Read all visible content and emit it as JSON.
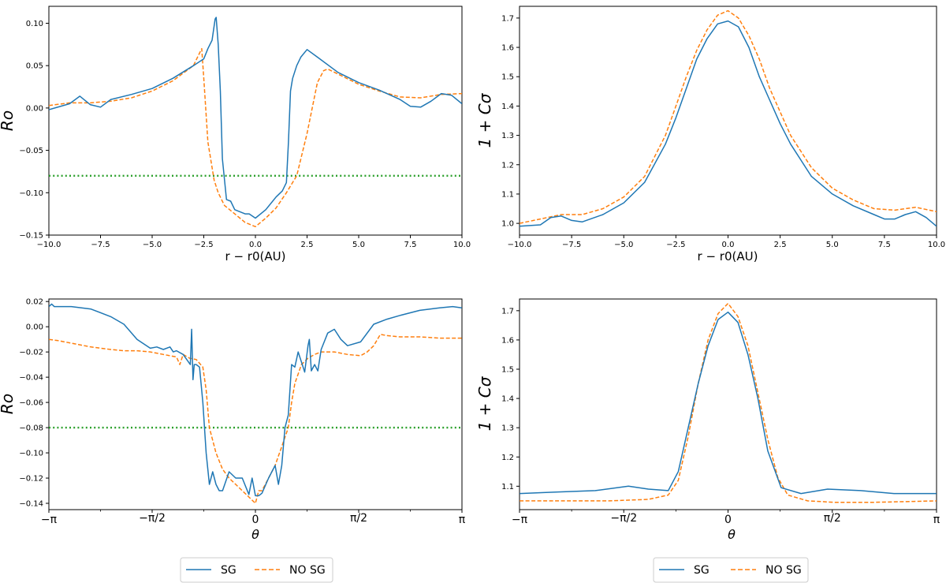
{
  "colors": {
    "sg": "#1f77b4",
    "nosg": "#ff7f0e",
    "threshold": "#2ca02c",
    "axis": "#000000"
  },
  "legends": [
    {
      "items": [
        {
          "label": "SG",
          "style": "solid"
        },
        {
          "label": "NO SG",
          "style": "dashed"
        }
      ]
    },
    {
      "items": [
        {
          "label": "SG",
          "style": "solid"
        },
        {
          "label": "NO SG",
          "style": "dashed"
        }
      ]
    }
  ],
  "chart_data": [
    {
      "type": "line",
      "title": "",
      "xlabel": "r − r0(AU)",
      "ylabel": "Ro",
      "xlim": [
        -10,
        10
      ],
      "ylim": [
        -0.15,
        0.12
      ],
      "xticks": [
        -10,
        -7.5,
        -5,
        -2.5,
        0,
        2.5,
        5,
        7.5,
        10
      ],
      "xticklabels": [
        "−10.0",
        "−7.5",
        "−5.0",
        "−2.5",
        "0.0",
        "2.5",
        "5.0",
        "7.5",
        "10.0"
      ],
      "yticks": [
        -0.15,
        -0.1,
        -0.05,
        0,
        0.05,
        0.1
      ],
      "yticklabels": [
        "−0.15",
        "−0.10",
        "−0.05",
        "0.00",
        "0.05",
        "0.10"
      ],
      "hline": {
        "y": -0.08,
        "style": "dotted"
      },
      "series": [
        {
          "name": "SG",
          "x": [
            -10,
            -9,
            -8.5,
            -8,
            -7.5,
            -7,
            -6,
            -5,
            -4,
            -3,
            -2.5,
            -2.3,
            -2.1,
            -1.95,
            -1.9,
            -1.8,
            -1.7,
            -1.6,
            -1.4,
            -1.2,
            -1,
            -0.5,
            -0.3,
            0,
            0.5,
            1,
            1.3,
            1.5,
            1.6,
            1.7,
            1.8,
            2,
            2.2,
            2.5,
            3,
            4,
            5,
            6,
            7,
            7.5,
            8,
            8.5,
            9,
            9.5,
            10
          ],
          "y": [
            -0.002,
            0.005,
            0.014,
            0.004,
            0.001,
            0.01,
            0.016,
            0.023,
            0.035,
            0.05,
            0.058,
            0.07,
            0.08,
            0.105,
            0.107,
            0.075,
            0.02,
            -0.06,
            -0.108,
            -0.11,
            -0.12,
            -0.125,
            -0.125,
            -0.13,
            -0.12,
            -0.105,
            -0.098,
            -0.088,
            -0.04,
            0.02,
            0.035,
            0.05,
            0.06,
            0.069,
            0.06,
            0.042,
            0.03,
            0.021,
            0.01,
            0.002,
            0.001,
            0.008,
            0.017,
            0.015,
            0.005
          ]
        },
        {
          "name": "NO SG",
          "x": [
            -10,
            -9,
            -8,
            -7,
            -6,
            -5,
            -4,
            -3,
            -2.8,
            -2.6,
            -2.5,
            -2.3,
            -2,
            -1.8,
            -1.5,
            -1,
            -0.5,
            0,
            0.5,
            1,
            1.5,
            2,
            2.5,
            3,
            3.3,
            3.5,
            4,
            5,
            6,
            7,
            8,
            9,
            10
          ],
          "y": [
            0.003,
            0.006,
            0.006,
            0.008,
            0.012,
            0.02,
            0.032,
            0.05,
            0.06,
            0.07,
            0.035,
            -0.04,
            -0.085,
            -0.1,
            -0.115,
            -0.125,
            -0.135,
            -0.14,
            -0.13,
            -0.118,
            -0.1,
            -0.08,
            -0.03,
            0.03,
            0.044,
            0.046,
            0.04,
            0.028,
            0.02,
            0.013,
            0.012,
            0.016,
            0.017
          ]
        }
      ]
    },
    {
      "type": "line",
      "title": "",
      "xlabel": "r − r0(AU)",
      "ylabel": "1 + Cσ",
      "xlim": [
        -10,
        10
      ],
      "ylim": [
        0.96,
        1.74
      ],
      "xticks": [
        -10,
        -7.5,
        -5,
        -2.5,
        0,
        2.5,
        5,
        7.5,
        10
      ],
      "xticklabels": [
        "−10.0",
        "−7.5",
        "−5.0",
        "−2.5",
        "0.0",
        "2.5",
        "5.0",
        "7.5",
        "10.0"
      ],
      "yticks": [
        1.0,
        1.1,
        1.2,
        1.3,
        1.4,
        1.5,
        1.6,
        1.7
      ],
      "yticklabels": [
        "1.0",
        "1.1",
        "1.2",
        "1.3",
        "1.4",
        "1.5",
        "1.6",
        "1.7"
      ],
      "series": [
        {
          "name": "SG",
          "x": [
            -10,
            -9,
            -8.5,
            -8,
            -7.5,
            -7,
            -6,
            -5,
            -4,
            -3,
            -2.5,
            -2,
            -1.5,
            -1,
            -0.5,
            0,
            0.5,
            1,
            1.5,
            2,
            2.5,
            3,
            4,
            5,
            6,
            7,
            7.5,
            8,
            8.5,
            9,
            9.5,
            10
          ],
          "y": [
            0.99,
            0.995,
            1.02,
            1.025,
            1.01,
            1.005,
            1.03,
            1.07,
            1.14,
            1.27,
            1.36,
            1.46,
            1.56,
            1.63,
            1.68,
            1.69,
            1.67,
            1.6,
            1.5,
            1.42,
            1.34,
            1.27,
            1.16,
            1.1,
            1.06,
            1.03,
            1.015,
            1.015,
            1.03,
            1.04,
            1.02,
            0.99
          ]
        },
        {
          "name": "NO SG",
          "x": [
            -10,
            -9,
            -8,
            -7,
            -6,
            -5,
            -4,
            -3,
            -2.5,
            -2,
            -1.5,
            -1,
            -0.5,
            0,
            0.5,
            1,
            1.5,
            2,
            2.5,
            3,
            4,
            5,
            6,
            7,
            8,
            9,
            10
          ],
          "y": [
            1.0,
            1.015,
            1.03,
            1.03,
            1.05,
            1.09,
            1.16,
            1.3,
            1.4,
            1.5,
            1.59,
            1.66,
            1.71,
            1.725,
            1.7,
            1.64,
            1.56,
            1.46,
            1.38,
            1.3,
            1.19,
            1.12,
            1.08,
            1.05,
            1.045,
            1.055,
            1.04
          ]
        }
      ]
    },
    {
      "type": "line",
      "title": "",
      "xlabel": "θ",
      "ylabel": "Ro",
      "xlim": [
        -3.1416,
        3.1416
      ],
      "ylim": [
        -0.145,
        0.022
      ],
      "xticks": [
        -3.1416,
        -1.5708,
        0,
        1.5708,
        3.1416
      ],
      "xticklabels": [
        "−π",
        "−π/2",
        "0",
        "π/2",
        "π"
      ],
      "yticks": [
        -0.14,
        -0.12,
        -0.1,
        -0.08,
        -0.06,
        -0.04,
        -0.02,
        0,
        0.02
      ],
      "yticklabels": [
        "−0.14",
        "−0.12",
        "−0.10",
        "−0.08",
        "−0.06",
        "−0.04",
        "−0.02",
        "0.00",
        "0.02"
      ],
      "hline": {
        "y": -0.08,
        "style": "dotted"
      },
      "series": [
        {
          "name": "SG",
          "x": [
            -3.14,
            -3.1,
            -3.06,
            -2.8,
            -2.5,
            -2.2,
            -2,
            -1.8,
            -1.6,
            -1.5,
            -1.4,
            -1.3,
            -1.25,
            -1.2,
            -1.1,
            -0.99,
            -0.97,
            -0.95,
            -0.93,
            -0.9,
            -0.85,
            -0.8,
            -0.75,
            -0.7,
            -0.65,
            -0.6,
            -0.55,
            -0.5,
            -0.4,
            -0.3,
            -0.2,
            -0.1,
            -0.05,
            0,
            0.05,
            0.1,
            0.2,
            0.3,
            0.35,
            0.4,
            0.45,
            0.5,
            0.55,
            0.6,
            0.65,
            0.7,
            0.75,
            0.8,
            0.82,
            0.85,
            0.9,
            0.95,
            1,
            1.1,
            1.2,
            1.3,
            1.4,
            1.6,
            1.8,
            2,
            2.2,
            2.5,
            2.8,
            3,
            3.14
          ],
          "y": [
            0.016,
            0.018,
            0.016,
            0.016,
            0.014,
            0.008,
            0.002,
            -0.01,
            -0.017,
            -0.016,
            -0.018,
            -0.016,
            -0.02,
            -0.019,
            -0.022,
            -0.03,
            -0.002,
            -0.042,
            -0.03,
            -0.03,
            -0.032,
            -0.06,
            -0.1,
            -0.125,
            -0.115,
            -0.125,
            -0.13,
            -0.13,
            -0.115,
            -0.12,
            -0.12,
            -0.133,
            -0.12,
            -0.134,
            -0.134,
            -0.132,
            -0.12,
            -0.11,
            -0.125,
            -0.11,
            -0.08,
            -0.07,
            -0.03,
            -0.032,
            -0.02,
            -0.028,
            -0.036,
            -0.015,
            -0.01,
            -0.035,
            -0.03,
            -0.035,
            -0.018,
            -0.005,
            -0.002,
            -0.01,
            -0.015,
            -0.012,
            0.002,
            0.006,
            0.009,
            0.013,
            0.015,
            0.016,
            0.015
          ]
        },
        {
          "name": "NO SG",
          "x": [
            -3.14,
            -3,
            -2.8,
            -2.5,
            -2.2,
            -2,
            -1.8,
            -1.6,
            -1.4,
            -1.2,
            -1.15,
            -1.1,
            -1,
            -0.9,
            -0.8,
            -0.75,
            -0.7,
            -0.6,
            -0.5,
            -0.4,
            -0.3,
            -0.2,
            -0.1,
            0,
            0.05,
            0.1,
            0.2,
            0.3,
            0.4,
            0.5,
            0.55,
            0.6,
            0.7,
            0.8,
            0.9,
            1,
            1.2,
            1.4,
            1.6,
            1.7,
            1.8,
            1.9,
            2,
            2.2,
            2.5,
            2.8,
            3.14
          ],
          "y": [
            -0.01,
            -0.011,
            -0.013,
            -0.016,
            -0.018,
            -0.019,
            -0.019,
            -0.02,
            -0.022,
            -0.024,
            -0.03,
            -0.022,
            -0.025,
            -0.026,
            -0.032,
            -0.05,
            -0.08,
            -0.1,
            -0.113,
            -0.12,
            -0.125,
            -0.13,
            -0.135,
            -0.14,
            -0.13,
            -0.13,
            -0.12,
            -0.11,
            -0.095,
            -0.08,
            -0.06,
            -0.045,
            -0.03,
            -0.025,
            -0.022,
            -0.02,
            -0.02,
            -0.022,
            -0.023,
            -0.02,
            -0.015,
            -0.006,
            -0.007,
            -0.008,
            -0.008,
            -0.009,
            -0.009
          ]
        }
      ]
    },
    {
      "type": "line",
      "title": "",
      "xlabel": "θ",
      "ylabel": "1 + Cσ",
      "xlim": [
        -3.1416,
        3.1416
      ],
      "ylim": [
        1.02,
        1.74
      ],
      "xticks": [
        -3.1416,
        -1.5708,
        0,
        1.5708,
        3.1416
      ],
      "xticklabels": [
        "−π",
        "−π/2",
        "0",
        "π/2",
        "π"
      ],
      "yticks": [
        1.1,
        1.2,
        1.3,
        1.4,
        1.5,
        1.6,
        1.7
      ],
      "yticklabels": [
        "1.1",
        "1.2",
        "1.3",
        "1.4",
        "1.5",
        "1.6",
        "1.7"
      ],
      "series": [
        {
          "name": "SG",
          "x": [
            -3.14,
            -2.6,
            -2,
            -1.5,
            -1.2,
            -0.9,
            -0.75,
            -0.6,
            -0.45,
            -0.3,
            -0.15,
            0,
            0.15,
            0.3,
            0.45,
            0.6,
            0.8,
            1.1,
            1.5,
            2,
            2.5,
            3.14
          ],
          "y": [
            1.075,
            1.08,
            1.085,
            1.1,
            1.09,
            1.085,
            1.15,
            1.3,
            1.45,
            1.58,
            1.67,
            1.695,
            1.66,
            1.55,
            1.4,
            1.22,
            1.095,
            1.075,
            1.09,
            1.085,
            1.075,
            1.075
          ]
        },
        {
          "name": "NO SG",
          "x": [
            -3.14,
            -2.5,
            -1.8,
            -1.2,
            -0.9,
            -0.75,
            -0.6,
            -0.45,
            -0.3,
            -0.15,
            0,
            0.15,
            0.3,
            0.45,
            0.6,
            0.75,
            0.9,
            1.2,
            1.6,
            2.2,
            2.8,
            3.14
          ],
          "y": [
            1.05,
            1.05,
            1.05,
            1.055,
            1.07,
            1.12,
            1.27,
            1.45,
            1.6,
            1.69,
            1.725,
            1.68,
            1.58,
            1.42,
            1.26,
            1.13,
            1.07,
            1.05,
            1.045,
            1.045,
            1.048,
            1.05
          ]
        }
      ]
    }
  ]
}
